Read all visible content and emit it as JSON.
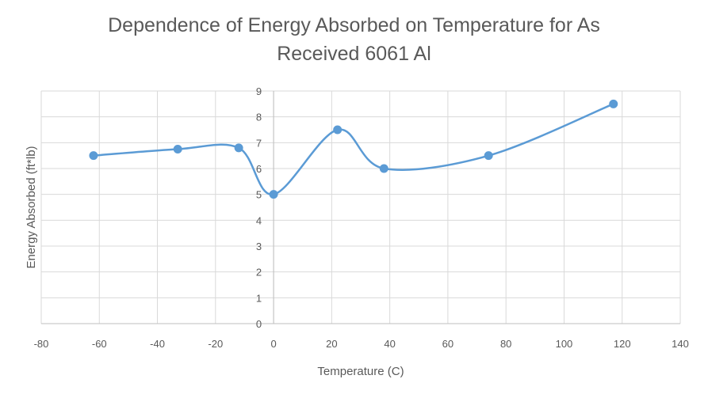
{
  "chart_data": {
    "type": "scatter",
    "title_lines": [
      "Dependence of Energy Absorbed on Temperature for As",
      "Received 6061 Al"
    ],
    "xlabel": "Temperature (C)",
    "ylabel": "Energy Absorbed (ft*lb)",
    "xlim": [
      -80,
      140
    ],
    "ylim": [
      0,
      9
    ],
    "xticks": [
      -80,
      -60,
      -40,
      -20,
      0,
      20,
      40,
      60,
      80,
      100,
      120,
      140
    ],
    "yticks": [
      0,
      1,
      2,
      3,
      4,
      5,
      6,
      7,
      8,
      9
    ],
    "grid": true,
    "smooth": true,
    "series_color": "#5B9BD5",
    "series": [
      {
        "points": [
          {
            "x": -62,
            "y": 6.5
          },
          {
            "x": -33,
            "y": 6.75
          },
          {
            "x": -12,
            "y": 6.8
          },
          {
            "x": 0,
            "y": 5.0
          },
          {
            "x": 22,
            "y": 7.5
          },
          {
            "x": 38,
            "y": 6.0
          },
          {
            "x": 74,
            "y": 6.5
          },
          {
            "x": 117,
            "y": 8.5
          }
        ]
      }
    ]
  }
}
